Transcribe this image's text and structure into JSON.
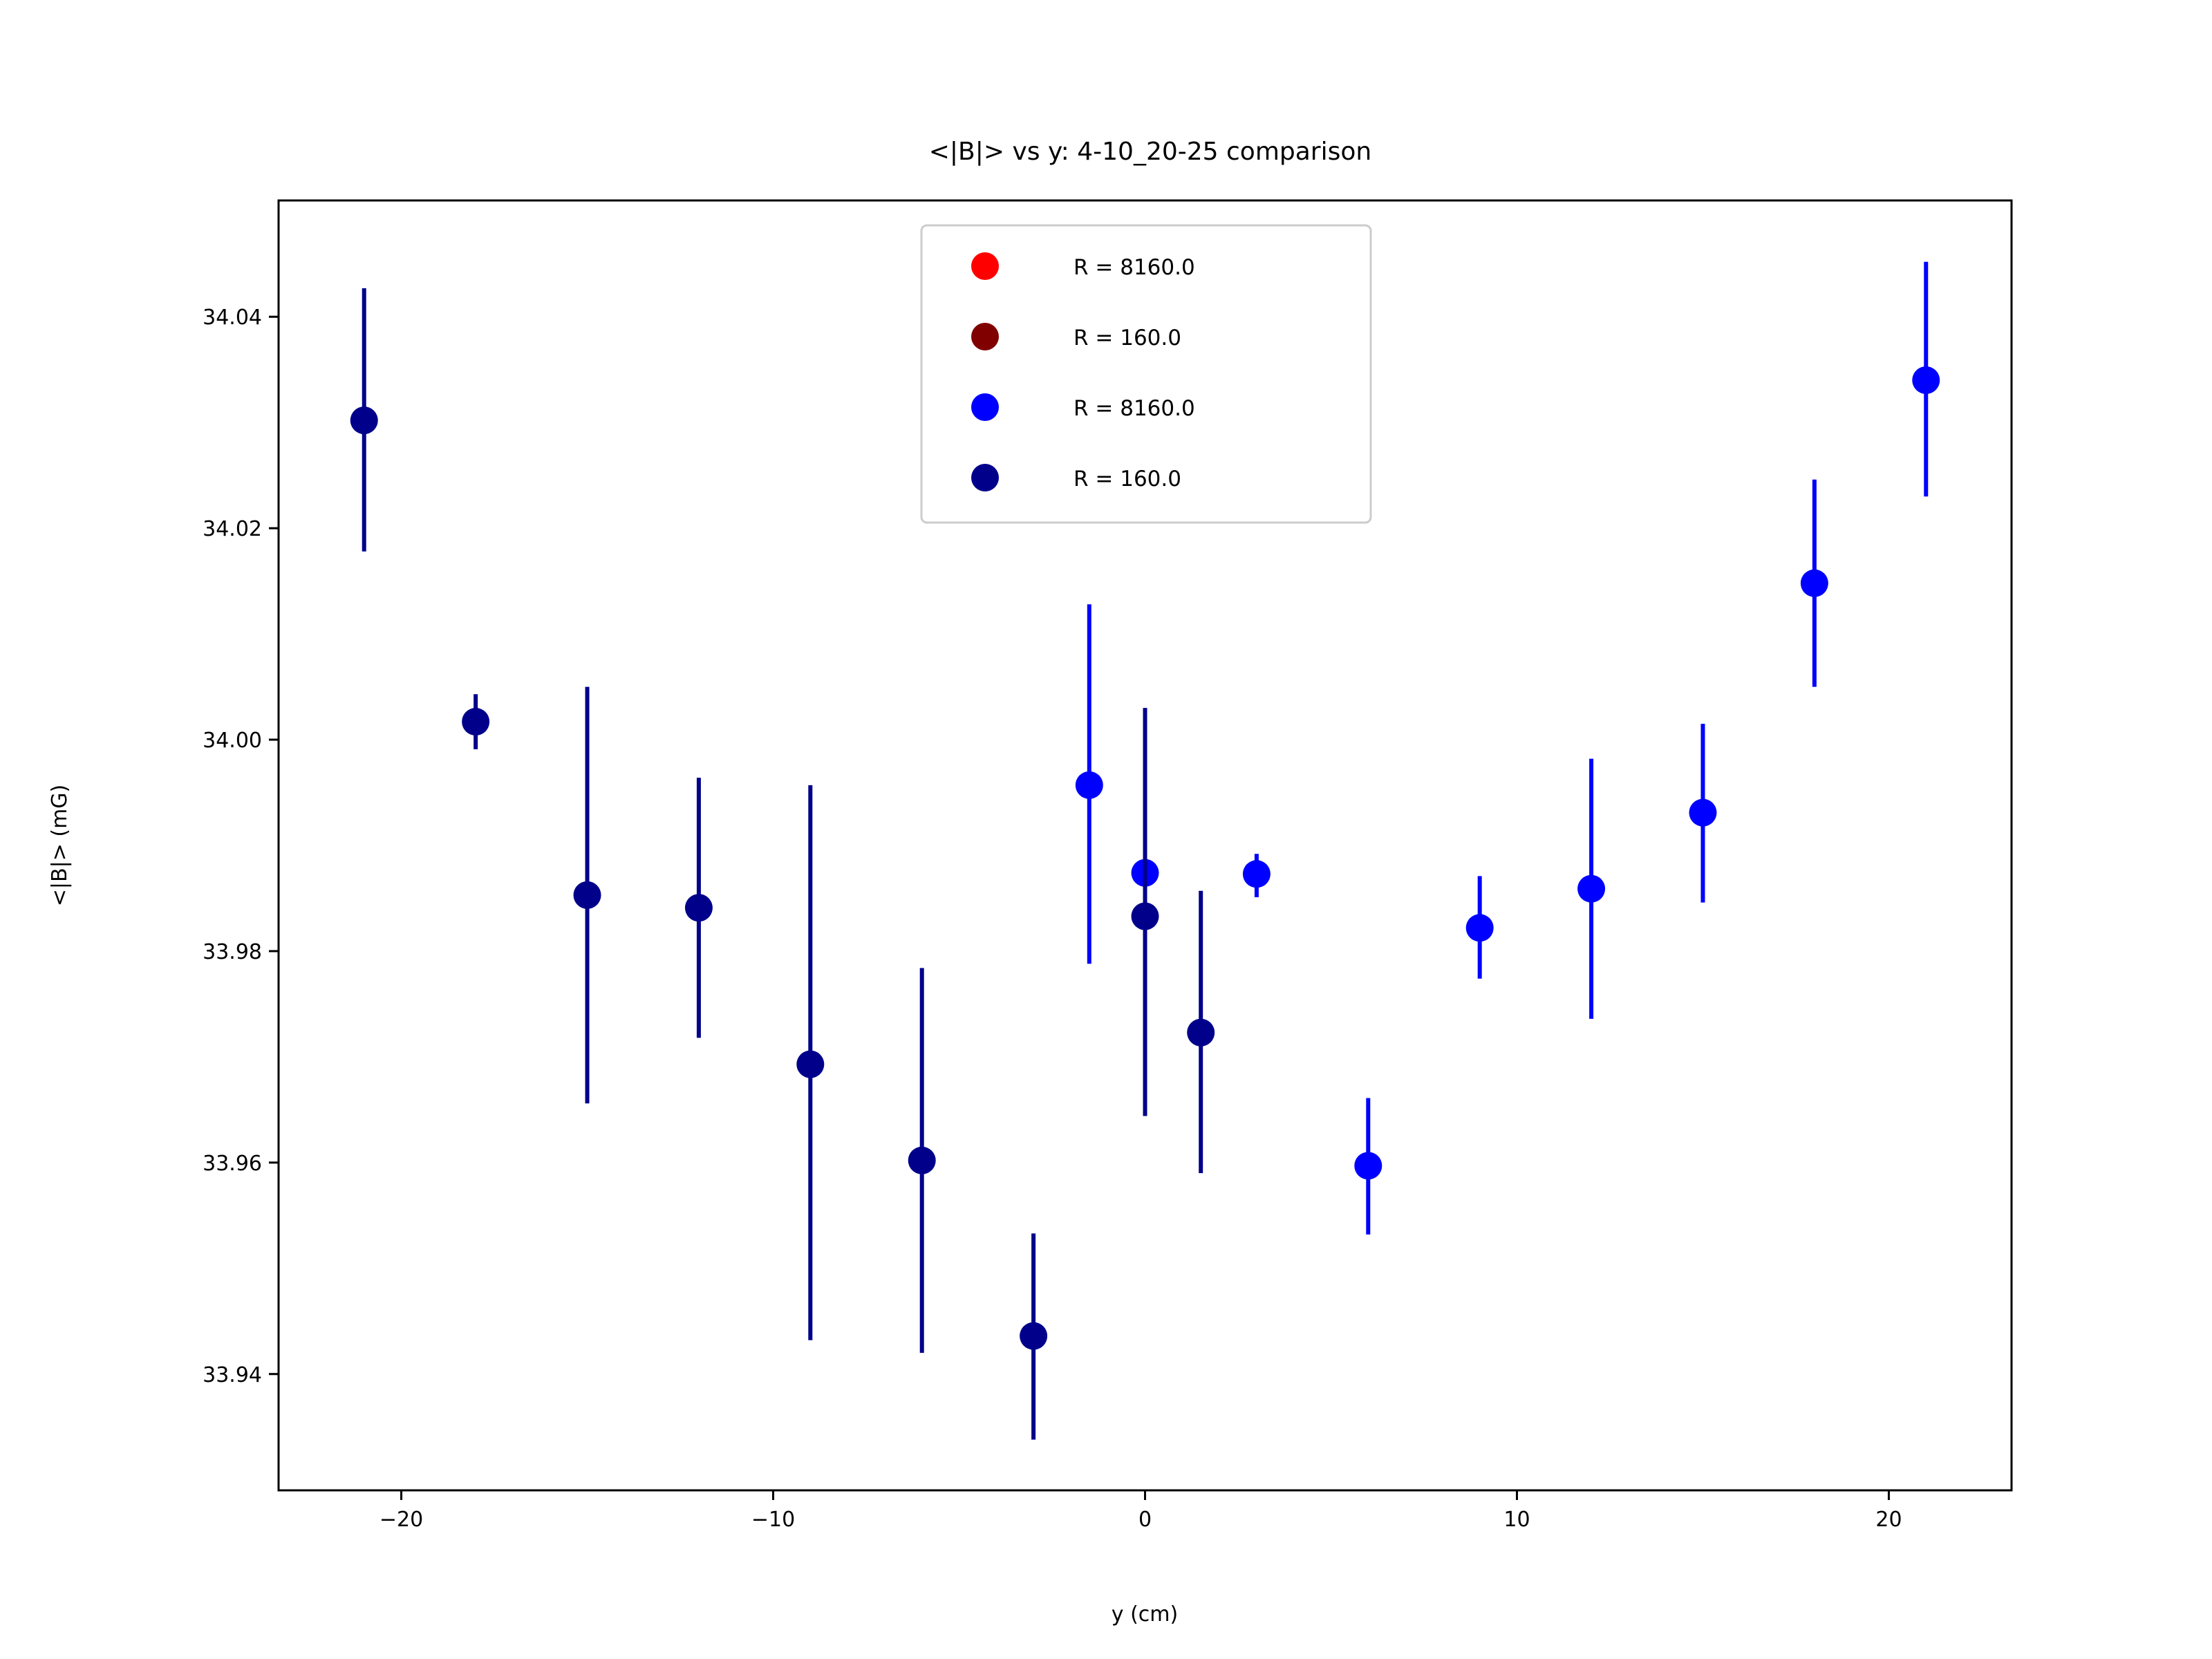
{
  "chart_data": {
    "type": "scatter",
    "title": "<|B|> vs y: 4-10_20-25 comparison",
    "xlabel": "y (cm)",
    "ylabel": "<|B|> (mG)",
    "xlim": [
      -23.3,
      23.3
    ],
    "ylim": [
      33.929,
      34.051
    ],
    "xticks": [
      -20,
      -10,
      0,
      10,
      20
    ],
    "xtick_labels": [
      "−20",
      "−10",
      "0",
      "10",
      "20"
    ],
    "yticks": [
      33.94,
      33.96,
      33.98,
      34.0,
      34.02,
      34.04
    ],
    "ytick_labels": [
      "33.94",
      "33.96",
      "33.98",
      "34.00",
      "34.02",
      "34.04"
    ],
    "grid": false,
    "legend_position": "upper center",
    "legend": [
      {
        "label": "R = 8160.0",
        "color": "#ff0000"
      },
      {
        "label": "R = 160.0",
        "color": "#800000"
      },
      {
        "label": "R = 8160.0",
        "color": "#0000ff"
      },
      {
        "label": "R = 160.0",
        "color": "#00008b"
      }
    ],
    "series": [
      {
        "name": "R = 8160.0",
        "color": "#ff0000",
        "points": []
      },
      {
        "name": "R = 160.0",
        "color": "#800000",
        "points": []
      },
      {
        "name": "R = 8160.0",
        "color": "#0000ff",
        "points": [
          {
            "x": -1.5,
            "y": 33.9957,
            "yerr_low": 33.9788,
            "yerr_high": 34.0128
          },
          {
            "x": 0.0,
            "y": 33.9874,
            "yerr_low": 33.9855,
            "yerr_high": 33.9892
          },
          {
            "x": 3.0,
            "y": 33.9873,
            "yerr_low": 33.9851,
            "yerr_high": 33.9892
          },
          {
            "x": 6.0,
            "y": 33.9597,
            "yerr_low": 33.9532,
            "yerr_high": 33.9661
          },
          {
            "x": 9.0,
            "y": 33.9822,
            "yerr_low": 33.9774,
            "yerr_high": 33.9871
          },
          {
            "x": 12.0,
            "y": 33.9859,
            "yerr_low": 33.9736,
            "yerr_high": 33.9982
          },
          {
            "x": 15.0,
            "y": 33.9931,
            "yerr_low": 33.9846,
            "yerr_high": 34.0015
          },
          {
            "x": 18.0,
            "y": 34.0148,
            "yerr_low": 34.005,
            "yerr_high": 34.0246
          },
          {
            "x": 21.0,
            "y": 34.034,
            "yerr_low": 34.023,
            "yerr_high": 34.0452
          }
        ]
      },
      {
        "name": "R = 160.0",
        "color": "#00008b",
        "points": [
          {
            "x": -21.0,
            "y": 34.0302,
            "yerr_low": 34.0178,
            "yerr_high": 34.0427
          },
          {
            "x": -18.0,
            "y": 34.0017,
            "yerr_low": 33.9991,
            "yerr_high": 34.0043
          },
          {
            "x": -15.0,
            "y": 33.9853,
            "yerr_low": 33.9656,
            "yerr_high": 34.005
          },
          {
            "x": -12.0,
            "y": 33.9841,
            "yerr_low": 33.9718,
            "yerr_high": 33.9964
          },
          {
            "x": -9.0,
            "y": 33.9693,
            "yerr_low": 33.9432,
            "yerr_high": 33.9957
          },
          {
            "x": -6.0,
            "y": 33.9602,
            "yerr_low": 33.942,
            "yerr_high": 33.9784
          },
          {
            "x": -3.0,
            "y": 33.9436,
            "yerr_low": 33.9338,
            "yerr_high": 33.9533
          },
          {
            "x": 0.0,
            "y": 33.9833,
            "yerr_low": 33.9644,
            "yerr_high": 34.003
          },
          {
            "x": 1.5,
            "y": 33.9723,
            "yerr_low": 33.959,
            "yerr_high": 33.9857
          }
        ]
      }
    ]
  }
}
